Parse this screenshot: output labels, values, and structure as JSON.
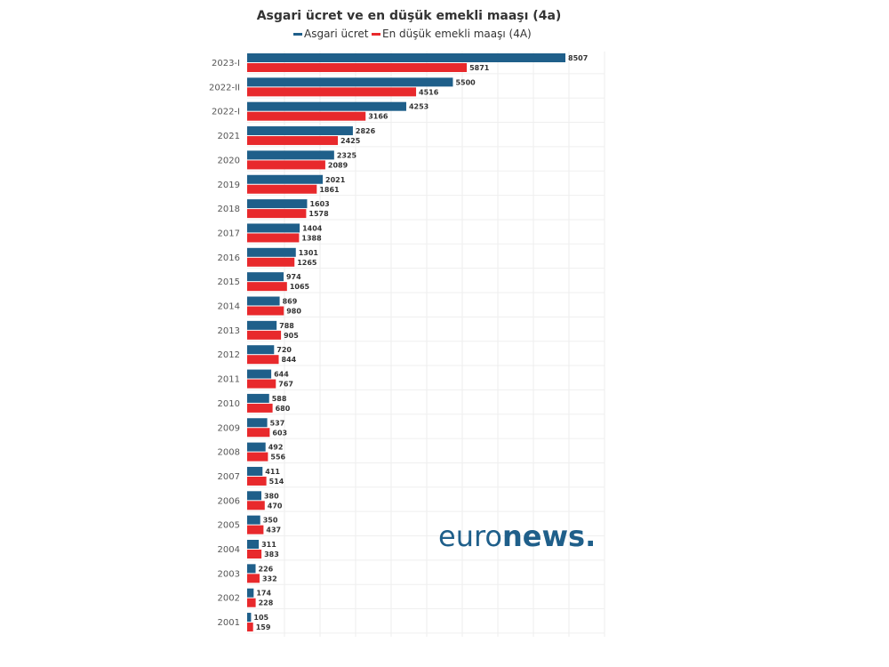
{
  "chart_data": {
    "type": "bar",
    "orientation": "horizontal",
    "title": "Asgari ücret ve en düşük emekli maaşı (4a)",
    "categories": [
      "2023-I",
      "2022-II",
      "2022-I",
      "2021",
      "2020",
      "2019",
      "2018",
      "2017",
      "2016",
      "2015",
      "2014",
      "2013",
      "2012",
      "2011",
      "2010",
      "2009",
      "2008",
      "2007",
      "2006",
      "2005",
      "2004",
      "2003",
      "2002",
      "2001"
    ],
    "series": [
      {
        "name": "Asgari ücret",
        "color": "#1f5f8a",
        "values": [
          8507,
          5500,
          4253,
          2826,
          2325,
          2021,
          1603,
          1404,
          1301,
          974,
          869,
          788,
          720,
          644,
          588,
          537,
          492,
          411,
          380,
          350,
          311,
          226,
          174,
          105
        ]
      },
      {
        "name": "En düşük emekli maaşı (4A)",
        "color": "#e8292c",
        "values": [
          5871,
          4516,
          3166,
          2425,
          2089,
          1861,
          1578,
          1388,
          1265,
          1065,
          980,
          905,
          844,
          767,
          680,
          603,
          556,
          514,
          470,
          437,
          383,
          332,
          228,
          159
        ]
      }
    ],
    "xlim": [
      0,
      8507
    ],
    "legend_position": "top",
    "grid": true
  },
  "logo": {
    "part1": "euro",
    "part2": "news",
    "dot": "."
  }
}
